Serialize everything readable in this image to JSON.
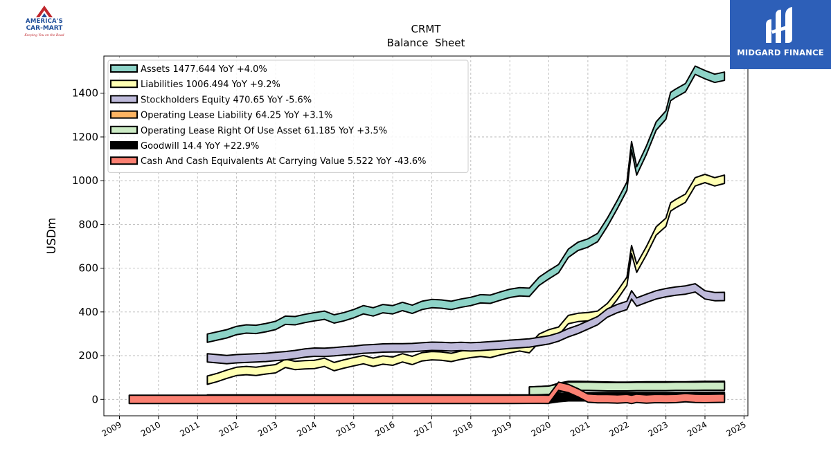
{
  "logos": {
    "left": {
      "line1": "AMERICA'S",
      "line2": "CAR-MART",
      "tagline": "Keeping You on the Road"
    },
    "right": {
      "name": "MIDGARD FINANCE"
    }
  },
  "chart_data": {
    "type": "area",
    "title": "CRMT",
    "subtitle": "Balance  Sheet",
    "xlabel": "",
    "ylabel": "USDm",
    "xlim": [
      2008.6,
      2025.1
    ],
    "ylim": [
      -75,
      1570
    ],
    "xticks": [
      2009,
      2010,
      2011,
      2012,
      2013,
      2014,
      2015,
      2016,
      2017,
      2018,
      2019,
      2020,
      2021,
      2022,
      2023,
      2024,
      2025
    ],
    "yticks": [
      0,
      200,
      400,
      600,
      800,
      1000,
      1200,
      1400
    ],
    "grid": true,
    "legend_position": "top-left",
    "series": [
      {
        "name": "Assets",
        "legend": "Assets  1477.644 YoY +4.0%",
        "color": "#8dd3c7",
        "points": [
          [
            2011.25,
            280
          ],
          [
            2011.5,
            290
          ],
          [
            2011.75,
            300
          ],
          [
            2012.0,
            315
          ],
          [
            2012.25,
            322
          ],
          [
            2012.5,
            320
          ],
          [
            2012.75,
            328
          ],
          [
            2013.0,
            338
          ],
          [
            2013.25,
            362
          ],
          [
            2013.5,
            360
          ],
          [
            2013.75,
            370
          ],
          [
            2014.0,
            378
          ],
          [
            2014.25,
            385
          ],
          [
            2014.5,
            368
          ],
          [
            2014.75,
            378
          ],
          [
            2015.0,
            392
          ],
          [
            2015.25,
            410
          ],
          [
            2015.5,
            400
          ],
          [
            2015.75,
            415
          ],
          [
            2016.0,
            410
          ],
          [
            2016.25,
            425
          ],
          [
            2016.5,
            412
          ],
          [
            2016.75,
            430
          ],
          [
            2017.0,
            438
          ],
          [
            2017.25,
            436
          ],
          [
            2017.5,
            430
          ],
          [
            2017.75,
            440
          ],
          [
            2018.0,
            448
          ],
          [
            2018.25,
            460
          ],
          [
            2018.5,
            458
          ],
          [
            2018.75,
            472
          ],
          [
            2019.0,
            485
          ],
          [
            2019.25,
            492
          ],
          [
            2019.5,
            490
          ],
          [
            2019.75,
            540
          ],
          [
            2020.0,
            570
          ],
          [
            2020.25,
            598
          ],
          [
            2020.5,
            668
          ],
          [
            2020.75,
            700
          ],
          [
            2021.0,
            715
          ],
          [
            2021.25,
            740
          ],
          [
            2021.5,
            810
          ],
          [
            2021.75,
            890
          ],
          [
            2022.0,
            975
          ],
          [
            2022.12,
            1160
          ],
          [
            2022.25,
            1045
          ],
          [
            2022.5,
            1140
          ],
          [
            2022.75,
            1250
          ],
          [
            2023.0,
            1300
          ],
          [
            2023.12,
            1385
          ],
          [
            2023.25,
            1400
          ],
          [
            2023.5,
            1425
          ],
          [
            2023.75,
            1505
          ],
          [
            2024.0,
            1485
          ],
          [
            2024.25,
            1468
          ],
          [
            2024.5,
            1477.644
          ]
        ]
      },
      {
        "name": "Liabilities",
        "legend": "Liabilities  1006.494 YoY +9.2%",
        "color": "#ffffb3",
        "points": [
          [
            2011.25,
            88
          ],
          [
            2011.5,
            100
          ],
          [
            2011.75,
            115
          ],
          [
            2012.0,
            128
          ],
          [
            2012.25,
            132
          ],
          [
            2012.5,
            128
          ],
          [
            2012.75,
            135
          ],
          [
            2013.0,
            140
          ],
          [
            2013.25,
            165
          ],
          [
            2013.5,
            155
          ],
          [
            2013.75,
            158
          ],
          [
            2014.0,
            160
          ],
          [
            2014.25,
            170
          ],
          [
            2014.5,
            150
          ],
          [
            2014.75,
            162
          ],
          [
            2015.0,
            172
          ],
          [
            2015.25,
            182
          ],
          [
            2015.5,
            170
          ],
          [
            2015.75,
            180
          ],
          [
            2016.0,
            175
          ],
          [
            2016.25,
            190
          ],
          [
            2016.5,
            178
          ],
          [
            2016.75,
            195
          ],
          [
            2017.0,
            200
          ],
          [
            2017.25,
            198
          ],
          [
            2017.5,
            192
          ],
          [
            2017.75,
            202
          ],
          [
            2018.0,
            210
          ],
          [
            2018.25,
            215
          ],
          [
            2018.5,
            210
          ],
          [
            2018.75,
            222
          ],
          [
            2019.0,
            232
          ],
          [
            2019.25,
            240
          ],
          [
            2019.5,
            232
          ],
          [
            2019.75,
            280
          ],
          [
            2020.0,
            300
          ],
          [
            2020.25,
            312
          ],
          [
            2020.5,
            365
          ],
          [
            2020.75,
            375
          ],
          [
            2021.0,
            378
          ],
          [
            2021.25,
            385
          ],
          [
            2021.5,
            420
          ],
          [
            2021.75,
            475
          ],
          [
            2022.0,
            540
          ],
          [
            2022.12,
            685
          ],
          [
            2022.25,
            600
          ],
          [
            2022.5,
            680
          ],
          [
            2022.75,
            770
          ],
          [
            2023.0,
            810
          ],
          [
            2023.12,
            880
          ],
          [
            2023.25,
            895
          ],
          [
            2023.5,
            920
          ],
          [
            2023.75,
            995
          ],
          [
            2024.0,
            1010
          ],
          [
            2024.25,
            995
          ],
          [
            2024.5,
            1006.494
          ]
        ]
      },
      {
        "name": "Stockholders Equity",
        "legend": "Stockholders Equity  470.65 YoY -5.6%",
        "color": "#bebada",
        "points": [
          [
            2011.25,
            190
          ],
          [
            2011.5,
            186
          ],
          [
            2011.75,
            182
          ],
          [
            2012.0,
            186
          ],
          [
            2012.25,
            188
          ],
          [
            2012.5,
            190
          ],
          [
            2012.75,
            192
          ],
          [
            2013.0,
            196
          ],
          [
            2013.25,
            200
          ],
          [
            2013.5,
            205
          ],
          [
            2013.75,
            212
          ],
          [
            2014.0,
            216
          ],
          [
            2014.25,
            215
          ],
          [
            2014.5,
            218
          ],
          [
            2014.75,
            222
          ],
          [
            2015.0,
            225
          ],
          [
            2015.25,
            230
          ],
          [
            2015.5,
            232
          ],
          [
            2015.75,
            235
          ],
          [
            2016.0,
            236
          ],
          [
            2016.25,
            236
          ],
          [
            2016.5,
            237
          ],
          [
            2016.75,
            240
          ],
          [
            2017.0,
            243
          ],
          [
            2017.25,
            242
          ],
          [
            2017.5,
            240
          ],
          [
            2017.75,
            242
          ],
          [
            2018.0,
            240
          ],
          [
            2018.25,
            242
          ],
          [
            2018.5,
            245
          ],
          [
            2018.75,
            248
          ],
          [
            2019.0,
            252
          ],
          [
            2019.25,
            255
          ],
          [
            2019.5,
            258
          ],
          [
            2019.75,
            265
          ],
          [
            2020.0,
            272
          ],
          [
            2020.25,
            285
          ],
          [
            2020.5,
            305
          ],
          [
            2020.75,
            320
          ],
          [
            2021.0,
            340
          ],
          [
            2021.25,
            360
          ],
          [
            2021.5,
            395
          ],
          [
            2021.75,
            415
          ],
          [
            2022.0,
            430
          ],
          [
            2022.12,
            478
          ],
          [
            2022.25,
            445
          ],
          [
            2022.5,
            462
          ],
          [
            2022.75,
            478
          ],
          [
            2023.0,
            488
          ],
          [
            2023.25,
            495
          ],
          [
            2023.5,
            500
          ],
          [
            2023.75,
            510
          ],
          [
            2024.0,
            478
          ],
          [
            2024.25,
            470
          ],
          [
            2024.5,
            470.65
          ]
        ]
      },
      {
        "name": "Operating Lease Liability",
        "legend": "Operating Lease Liability  64.25 YoY +3.1%",
        "color": "#fdb462",
        "points": [
          [
            2019.5,
            38
          ],
          [
            2019.75,
            40
          ],
          [
            2020.0,
            42
          ],
          [
            2020.25,
            55
          ],
          [
            2020.5,
            64
          ],
          [
            2020.75,
            64
          ],
          [
            2021.0,
            63
          ],
          [
            2021.25,
            62
          ],
          [
            2021.5,
            61
          ],
          [
            2021.75,
            60
          ],
          [
            2022.0,
            60
          ],
          [
            2022.25,
            61
          ],
          [
            2022.5,
            62
          ],
          [
            2022.75,
            62
          ],
          [
            2023.0,
            62
          ],
          [
            2023.25,
            62
          ],
          [
            2023.5,
            62
          ],
          [
            2023.75,
            63
          ],
          [
            2024.0,
            64
          ],
          [
            2024.25,
            64
          ],
          [
            2024.5,
            64.25
          ]
        ]
      },
      {
        "name": "Operating Lease Right Of Use Asset",
        "legend": "Operating Lease Right Of Use Asset  61.185 YoY +3.5%",
        "color": "#ccebc5",
        "points": [
          [
            2019.5,
            38
          ],
          [
            2019.75,
            40
          ],
          [
            2020.0,
            42
          ],
          [
            2020.25,
            52
          ],
          [
            2020.5,
            60
          ],
          [
            2020.75,
            60
          ],
          [
            2021.0,
            60
          ],
          [
            2021.25,
            59
          ],
          [
            2021.5,
            58
          ],
          [
            2021.75,
            58
          ],
          [
            2022.0,
            58
          ],
          [
            2022.25,
            59
          ],
          [
            2022.5,
            59
          ],
          [
            2022.75,
            59
          ],
          [
            2023.0,
            59
          ],
          [
            2023.25,
            60
          ],
          [
            2023.5,
            60
          ],
          [
            2023.75,
            60
          ],
          [
            2024.0,
            61
          ],
          [
            2024.25,
            61
          ],
          [
            2024.5,
            61.185
          ]
        ]
      },
      {
        "name": "Goodwill",
        "legend": "Goodwill  14.4 YoY +22.9%",
        "color": "#000000",
        "points": [
          [
            2011.25,
            2
          ],
          [
            2019.75,
            2
          ],
          [
            2020.0,
            2
          ],
          [
            2020.25,
            8
          ],
          [
            2020.5,
            12
          ],
          [
            2021.0,
            12
          ],
          [
            2022.0,
            13
          ],
          [
            2023.0,
            13
          ],
          [
            2023.5,
            13
          ],
          [
            2024.0,
            14
          ],
          [
            2024.5,
            14.4
          ]
        ]
      },
      {
        "name": "Cash And Cash Equivalents At Carrying Value",
        "legend": "Cash And Cash Equivalents At Carrying Value  5.522 YoY -43.6%",
        "color": "#fb8072",
        "points": [
          [
            2009.25,
            0
          ],
          [
            2010.0,
            0
          ],
          [
            2011.0,
            0
          ],
          [
            2012.0,
            0
          ],
          [
            2013.0,
            0
          ],
          [
            2014.0,
            0
          ],
          [
            2015.0,
            0
          ],
          [
            2016.0,
            0
          ],
          [
            2017.0,
            0
          ],
          [
            2018.0,
            0
          ],
          [
            2019.0,
            0
          ],
          [
            2019.75,
            1
          ],
          [
            2020.0,
            0
          ],
          [
            2020.25,
            60
          ],
          [
            2020.5,
            50
          ],
          [
            2020.75,
            30
          ],
          [
            2021.0,
            6
          ],
          [
            2021.25,
            3
          ],
          [
            2021.5,
            3
          ],
          [
            2021.75,
            2
          ],
          [
            2022.0,
            4
          ],
          [
            2022.12,
            0
          ],
          [
            2022.25,
            5
          ],
          [
            2022.5,
            2
          ],
          [
            2022.75,
            4
          ],
          [
            2023.0,
            3
          ],
          [
            2023.25,
            4
          ],
          [
            2023.5,
            8
          ],
          [
            2023.75,
            5
          ],
          [
            2024.0,
            4
          ],
          [
            2024.25,
            5
          ],
          [
            2024.5,
            5.522
          ]
        ]
      }
    ]
  }
}
